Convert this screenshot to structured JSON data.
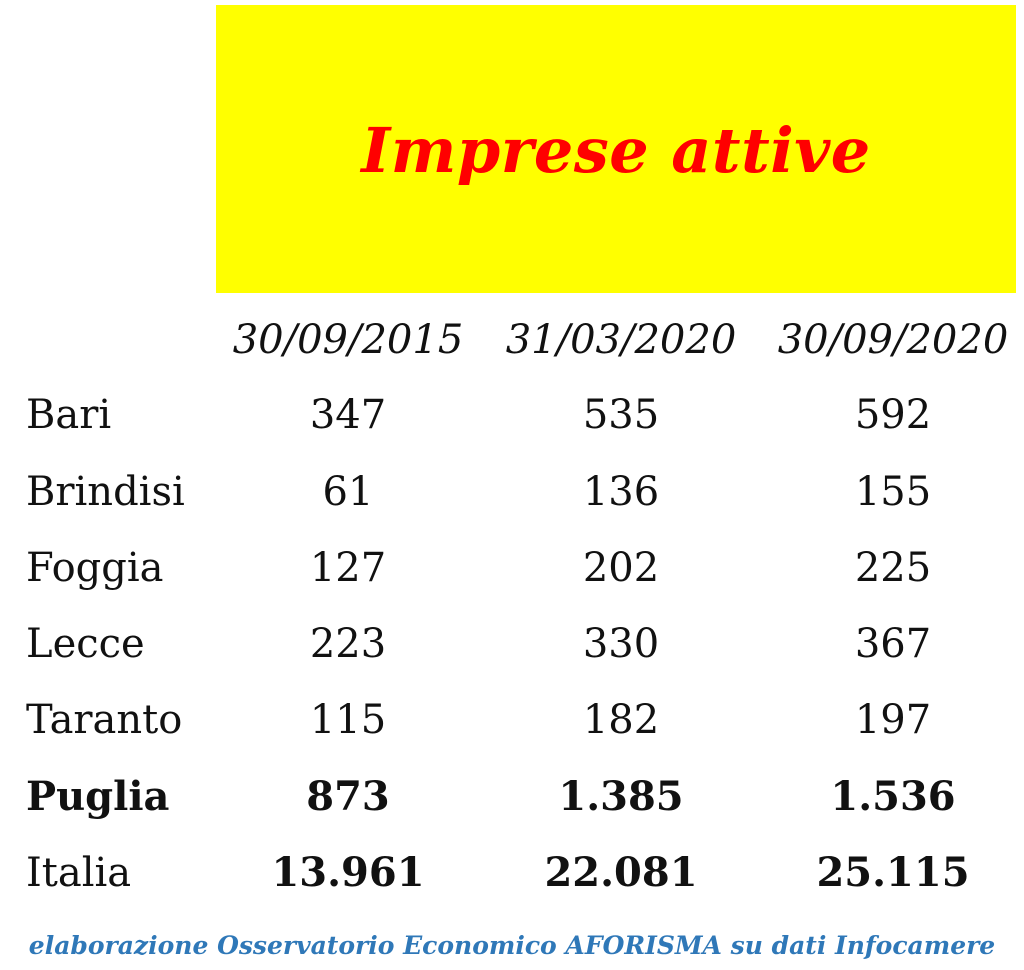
{
  "chart_data": {
    "type": "table",
    "title": "Imprese attive",
    "columns": [
      "30/09/2015",
      "31/03/2020",
      "30/09/2020"
    ],
    "rows": [
      {
        "label": "Bari",
        "values": [
          "347",
          "535",
          "592"
        ],
        "bold": false
      },
      {
        "label": "Brindisi",
        "values": [
          "61",
          "136",
          "155"
        ],
        "bold": false
      },
      {
        "label": "Foggia",
        "values": [
          "127",
          "202",
          "225"
        ],
        "bold": false
      },
      {
        "label": "Lecce",
        "values": [
          "223",
          "330",
          "367"
        ],
        "bold": false
      },
      {
        "label": "Taranto",
        "values": [
          "115",
          "182",
          "197"
        ],
        "bold": false
      },
      {
        "label": "Puglia",
        "values": [
          "873",
          "1.385",
          "1.536"
        ],
        "bold": true
      },
      {
        "label": "Italia",
        "values": [
          "13.961",
          "22.081",
          "25.115"
        ],
        "bold": true,
        "label_bold": false
      }
    ],
    "source": "elaborazione Osservatorio Economico AFORISMA su dati Infocamere"
  },
  "colors": {
    "title_background": "#ffff00",
    "title_text": "#ff0000",
    "source_text": "#2f78b8"
  }
}
